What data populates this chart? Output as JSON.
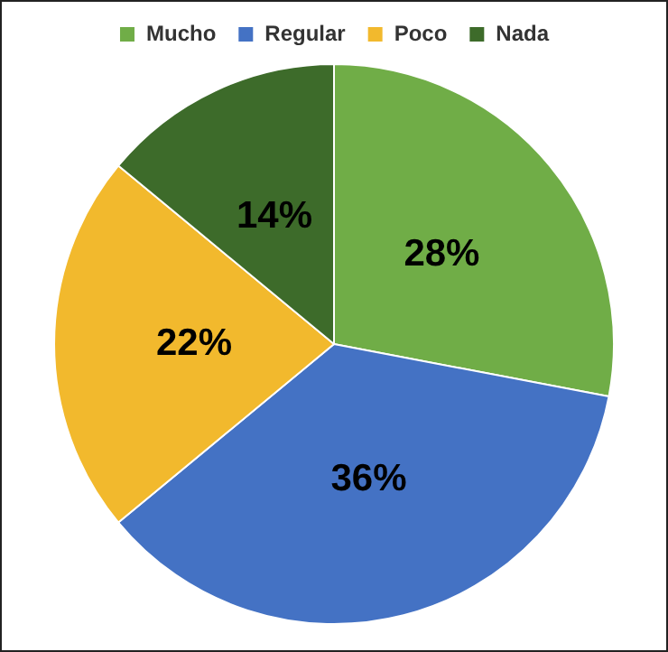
{
  "chart_data": {
    "type": "pie",
    "categories": [
      "Mucho",
      "Regular",
      "Poco",
      "Nada"
    ],
    "values": [
      28,
      36,
      22,
      14
    ],
    "colors": [
      "#70ad47",
      "#4472c4",
      "#f2b92d",
      "#3d6b2a"
    ],
    "value_labels": [
      "28%",
      "36%",
      "22%",
      "14%"
    ],
    "legend": "top"
  }
}
